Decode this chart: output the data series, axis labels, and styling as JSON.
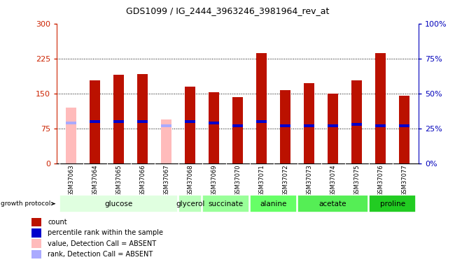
{
  "title": "GDS1099 / IG_2444_3963246_3981964_rev_at",
  "samples": [
    "GSM37063",
    "GSM37064",
    "GSM37065",
    "GSM37066",
    "GSM37067",
    "GSM37068",
    "GSM37069",
    "GSM37070",
    "GSM37071",
    "GSM37072",
    "GSM37073",
    "GSM37074",
    "GSM37075",
    "GSM37076",
    "GSM37077"
  ],
  "counts": [
    120,
    178,
    190,
    192,
    95,
    165,
    153,
    142,
    237,
    157,
    172,
    150,
    178,
    237,
    145
  ],
  "percentile_ranks_pct": [
    29,
    30,
    30,
    30,
    27,
    30,
    29,
    27,
    30,
    27,
    27,
    27,
    28,
    27,
    27
  ],
  "absent": [
    true,
    false,
    false,
    false,
    true,
    false,
    false,
    false,
    false,
    false,
    false,
    false,
    false,
    false,
    false
  ],
  "ylim_left": [
    0,
    300
  ],
  "ylim_right": [
    0,
    100
  ],
  "yticks_left": [
    0,
    75,
    150,
    225,
    300
  ],
  "yticks_right": [
    0,
    25,
    50,
    75,
    100
  ],
  "groups": [
    {
      "label": "glucose",
      "indices": [
        0,
        1,
        2,
        3,
        4
      ],
      "color": "#e0ffe0"
    },
    {
      "label": "glycerol",
      "indices": [
        5
      ],
      "color": "#bbffbb"
    },
    {
      "label": "succinate",
      "indices": [
        6,
        7
      ],
      "color": "#99ff99"
    },
    {
      "label": "alanine",
      "indices": [
        8,
        9
      ],
      "color": "#66ff66"
    },
    {
      "label": "acetate",
      "indices": [
        10,
        11,
        12
      ],
      "color": "#55ee55"
    },
    {
      "label": "proline",
      "indices": [
        13,
        14
      ],
      "color": "#22cc22"
    }
  ],
  "bar_color_present": "#bb1100",
  "bar_color_absent": "#ffbbbb",
  "rank_color_present": "#0000cc",
  "rank_color_absent": "#aaaaff",
  "bar_width": 0.45,
  "background_color": "#ffffff",
  "left_axis_color": "#cc2200",
  "right_axis_color": "#0000bb",
  "xtick_bg": "#cccccc",
  "rank_bar_height": 6
}
